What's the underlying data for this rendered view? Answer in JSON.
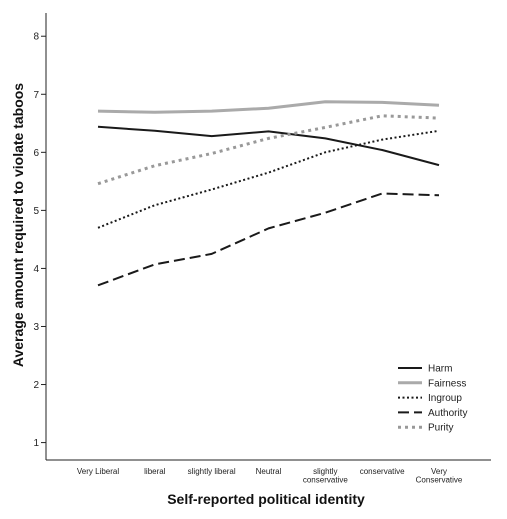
{
  "chart_data": {
    "type": "line",
    "title": "",
    "xlabel": "Self-reported political identity",
    "ylabel": "Average amount required to violate taboos",
    "categories": [
      [
        "Very Liberal"
      ],
      [
        "liberal"
      ],
      [
        "slightly liberal"
      ],
      [
        "Neutral"
      ],
      [
        "slightly",
        "conservative"
      ],
      [
        "conservative"
      ],
      [
        "Very",
        "Conservative"
      ]
    ],
    "ylim": [
      0.7,
      8.4
    ],
    "yticks": [
      1,
      2,
      3,
      4,
      5,
      6,
      7,
      8
    ],
    "grid": false,
    "legend_position": "bottom-right",
    "series": [
      {
        "name": "Harm",
        "style": "solid",
        "color": "#1a1a1a",
        "values": [
          6.44,
          6.37,
          6.28,
          6.36,
          6.24,
          6.04,
          5.78
        ]
      },
      {
        "name": "Fairness",
        "style": "solid-gray",
        "color": "#aaaaaa",
        "values": [
          6.71,
          6.69,
          6.71,
          6.76,
          6.87,
          6.86,
          6.81
        ]
      },
      {
        "name": "Ingroup",
        "style": "dotted",
        "color": "#1a1a1a",
        "values": [
          4.7,
          5.09,
          5.36,
          5.65,
          6.0,
          6.22,
          6.37
        ]
      },
      {
        "name": "Authority",
        "style": "dashed",
        "color": "#1a1a1a",
        "values": [
          3.71,
          4.07,
          4.25,
          4.69,
          4.96,
          5.29,
          5.26
        ]
      },
      {
        "name": "Purity",
        "style": "dotted-gray",
        "color": "#999999",
        "values": [
          5.46,
          5.77,
          5.98,
          6.24,
          6.43,
          6.63,
          6.59
        ]
      }
    ]
  }
}
